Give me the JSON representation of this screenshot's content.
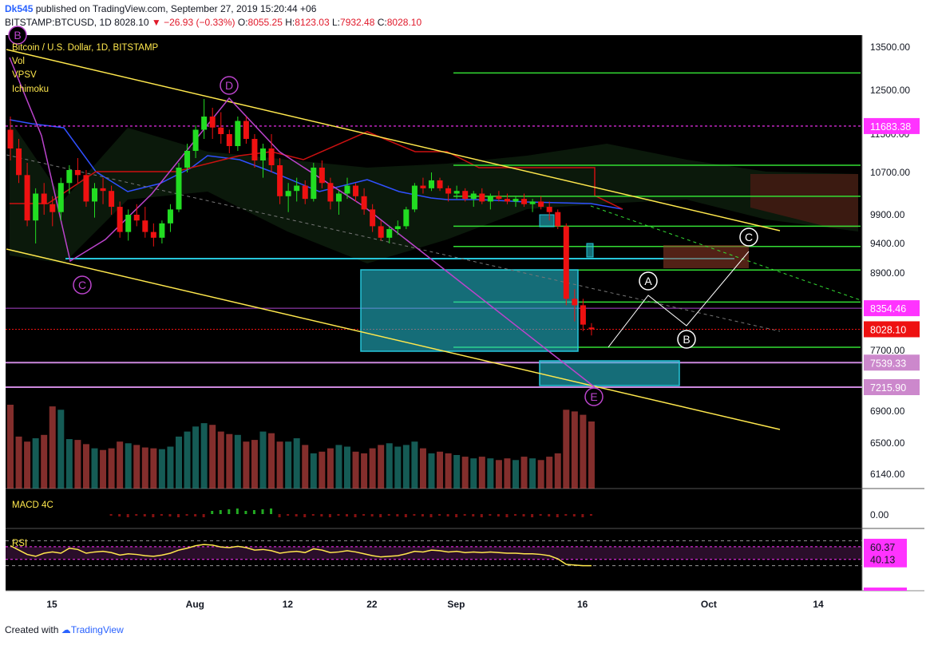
{
  "header": {
    "author": "Dk545",
    "published": " published on TradingView.com, September 27, 2019 15:20:44 +06",
    "symbol": "BITSTAMP:BTCUSD, 1D",
    "last": "8028.10",
    "change": "−26.93 (−0.33%)",
    "o_label": "O:",
    "o": "8055.25",
    "h_label": "H:",
    "h": "8123.03",
    "l_label": "L:",
    "l": "7932.48",
    "c_label": "C:",
    "c": "8028.10"
  },
  "legend": {
    "title": "Bitcoin / U.S. Dollar, 1D, BITSTAMP",
    "items": [
      "Vol",
      "VPSV",
      "Ichimoku"
    ]
  },
  "footer": {
    "created": "Created with",
    "brand": "TradingView"
  },
  "colors": {
    "background": "#000000",
    "up": "#22dd22",
    "down": "#ee1111",
    "trendline": "#ffe84d",
    "fib": "#33dd33",
    "wave": "#bb44cc",
    "magenta": "#ff33ff",
    "box": "#26c6da",
    "projection": "#ffffff"
  },
  "chart_data": {
    "type": "candlestick",
    "symbol": "BITSTAMP:BTCUSD",
    "timeframe": "1D",
    "price_axis_ticks": [
      13500,
      12500,
      11500,
      10700,
      9900,
      9400,
      8900,
      7700,
      6900,
      6500,
      6140
    ],
    "price_axis_tick_labels": [
      "13500.00",
      "12500.00",
      "11500.00",
      "10700.00",
      "9900.00",
      "9400.00",
      "8900.00",
      "7700.00",
      "6900.00",
      "6500.00",
      "6140.00"
    ],
    "price_badges": [
      {
        "label": "11683.38",
        "value": 11683.38,
        "color": "#ff33ff"
      },
      {
        "label": "8354.46",
        "value": 8354.46,
        "color": "#ff33ff"
      },
      {
        "label": "8028.10",
        "value": 8028.1,
        "color": "#ee1111"
      },
      {
        "label": "7539.33",
        "value": 7539.33,
        "color": "#cc88cc"
      },
      {
        "label": "7215.90",
        "value": 7215.9,
        "color": "#cc88cc"
      }
    ],
    "date_labels": [
      {
        "label": "15",
        "day": 0
      },
      {
        "label": "Aug",
        "day": 17
      },
      {
        "label": "12",
        "day": 28
      },
      {
        "label": "22",
        "day": 38
      },
      {
        "label": "Sep",
        "day": 48
      },
      {
        "label": "16",
        "day": 63
      },
      {
        "label": "Oct",
        "day": 78
      },
      {
        "label": "14",
        "day": 91
      }
    ],
    "ohlc": [
      [
        11600,
        11900,
        10950,
        11200
      ],
      [
        11200,
        11400,
        10500,
        10650
      ],
      [
        10650,
        10900,
        9700,
        9800
      ],
      [
        9800,
        10400,
        9400,
        10300
      ],
      [
        10300,
        10500,
        9900,
        10100
      ],
      [
        10100,
        10250,
        9700,
        9950
      ],
      [
        9950,
        10600,
        9800,
        10500
      ],
      [
        10500,
        10850,
        10300,
        10750
      ],
      [
        10750,
        11000,
        10500,
        10650
      ],
      [
        10650,
        10750,
        10050,
        10150
      ],
      [
        10150,
        10500,
        9850,
        10400
      ],
      [
        10400,
        10600,
        10100,
        10350
      ],
      [
        10350,
        10450,
        9900,
        10050
      ],
      [
        10050,
        10150,
        9500,
        9600
      ],
      [
        9600,
        10000,
        9450,
        9900
      ],
      [
        9900,
        10100,
        9700,
        9800
      ],
      [
        9800,
        10050,
        9500,
        9600
      ],
      [
        9600,
        9750,
        9350,
        9500
      ],
      [
        9500,
        9800,
        9400,
        9750
      ],
      [
        9750,
        10100,
        9600,
        10000
      ],
      [
        10000,
        10900,
        9950,
        10800
      ],
      [
        10800,
        11300,
        10700,
        11150
      ],
      [
        11150,
        11700,
        11000,
        11600
      ],
      [
        11600,
        12300,
        11400,
        11900
      ],
      [
        11900,
        12100,
        11400,
        11650
      ],
      [
        11650,
        12000,
        11300,
        11500
      ],
      [
        11500,
        11600,
        11100,
        11250
      ],
      [
        11250,
        11900,
        11150,
        11800
      ],
      [
        11800,
        11900,
        11300,
        11400
      ],
      [
        11400,
        11500,
        10800,
        10950
      ],
      [
        10950,
        11300,
        10600,
        11200
      ],
      [
        11200,
        11500,
        10700,
        10850
      ],
      [
        10850,
        11000,
        10100,
        10250
      ],
      [
        10250,
        10500,
        9950,
        10350
      ],
      [
        10350,
        10600,
        10150,
        10450
      ],
      [
        10450,
        10550,
        10100,
        10200
      ],
      [
        10200,
        10900,
        10150,
        10800
      ],
      [
        10800,
        10950,
        10400,
        10500
      ],
      [
        10500,
        10600,
        10000,
        10150
      ],
      [
        10150,
        10350,
        9900,
        10300
      ],
      [
        10300,
        10600,
        10200,
        10450
      ],
      [
        10450,
        10500,
        10150,
        10250
      ],
      [
        10250,
        10400,
        9900,
        10000
      ],
      [
        10000,
        10100,
        9600,
        9700
      ],
      [
        9700,
        9800,
        9450,
        9500
      ],
      [
        9500,
        9700,
        9400,
        9650
      ],
      [
        9650,
        9800,
        9550,
        9700
      ],
      [
        9700,
        10050,
        9650,
        10000
      ],
      [
        10000,
        10500,
        9950,
        10450
      ],
      [
        10450,
        10600,
        10300,
        10400
      ],
      [
        10400,
        10700,
        10350,
        10550
      ],
      [
        10550,
        10600,
        10350,
        10400
      ],
      [
        10400,
        10450,
        10150,
        10300
      ],
      [
        10300,
        10450,
        10200,
        10350
      ],
      [
        10350,
        10400,
        10150,
        10200
      ],
      [
        10200,
        10350,
        10050,
        10300
      ],
      [
        10300,
        10400,
        10100,
        10150
      ],
      [
        10150,
        10300,
        10000,
        10250
      ],
      [
        10250,
        10350,
        10150,
        10200
      ],
      [
        10200,
        10300,
        10100,
        10150
      ],
      [
        10150,
        10250,
        10050,
        10200
      ],
      [
        10200,
        10300,
        10050,
        10100
      ],
      [
        10100,
        10200,
        9950,
        10150
      ],
      [
        10150,
        10250,
        10000,
        10050
      ],
      [
        10050,
        10150,
        9800,
        9950
      ],
      [
        9950,
        10000,
        9650,
        9700
      ],
      [
        9700,
        9750,
        8400,
        8500
      ],
      [
        8500,
        8650,
        8150,
        8400
      ],
      [
        8400,
        8500,
        8000,
        8100
      ],
      [
        8055.25,
        8123.03,
        7932.48,
        8028.1
      ]
    ],
    "volume": [
      1000,
      620,
      560,
      600,
      640,
      980,
      940,
      590,
      580,
      530,
      480,
      460,
      480,
      560,
      540,
      520,
      490,
      480,
      470,
      500,
      620,
      680,
      740,
      780,
      760,
      680,
      650,
      640,
      560,
      580,
      680,
      660,
      560,
      560,
      600,
      520,
      420,
      440,
      480,
      520,
      500,
      440,
      420,
      480,
      520,
      540,
      500,
      520,
      560,
      480,
      420,
      440,
      420,
      400,
      380,
      360,
      380,
      360,
      340,
      360,
      340,
      380,
      360,
      340,
      380,
      420,
      940,
      920,
      880,
      800
    ],
    "rsi": [
      62,
      55,
      48,
      45,
      50,
      52,
      50,
      58,
      56,
      50,
      52,
      53,
      51,
      47,
      49,
      48,
      46,
      45,
      47,
      50,
      55,
      58,
      62,
      64,
      63,
      60,
      59,
      61,
      59,
      55,
      56,
      54,
      50,
      52,
      53,
      51,
      57,
      55,
      51,
      52,
      54,
      52,
      49,
      46,
      44,
      45,
      46,
      49,
      53,
      52,
      55,
      54,
      52,
      53,
      51,
      52,
      51,
      52,
      51,
      50,
      50,
      49,
      49,
      48,
      46,
      41,
      32,
      31,
      30,
      30
    ],
    "rsi_levels": [
      {
        "label": "60.37",
        "value": 60.37
      },
      {
        "label": "40.13",
        "value": 40.13
      }
    ],
    "macd_label": "0.00",
    "panels": {
      "macd_title": "MACD 4C",
      "rsi_title": "RSI"
    },
    "annotations": {
      "elliott_labels": [
        "B",
        "D",
        "C",
        "E"
      ],
      "projection_labels": [
        "A",
        "B",
        "C"
      ],
      "horizontal_levels": [
        11683.38,
        8354.46,
        7539.33,
        7215.9
      ],
      "fib_levels": [
        12900,
        10850,
        10250,
        9700,
        9350,
        8950,
        8450,
        7750
      ]
    }
  }
}
